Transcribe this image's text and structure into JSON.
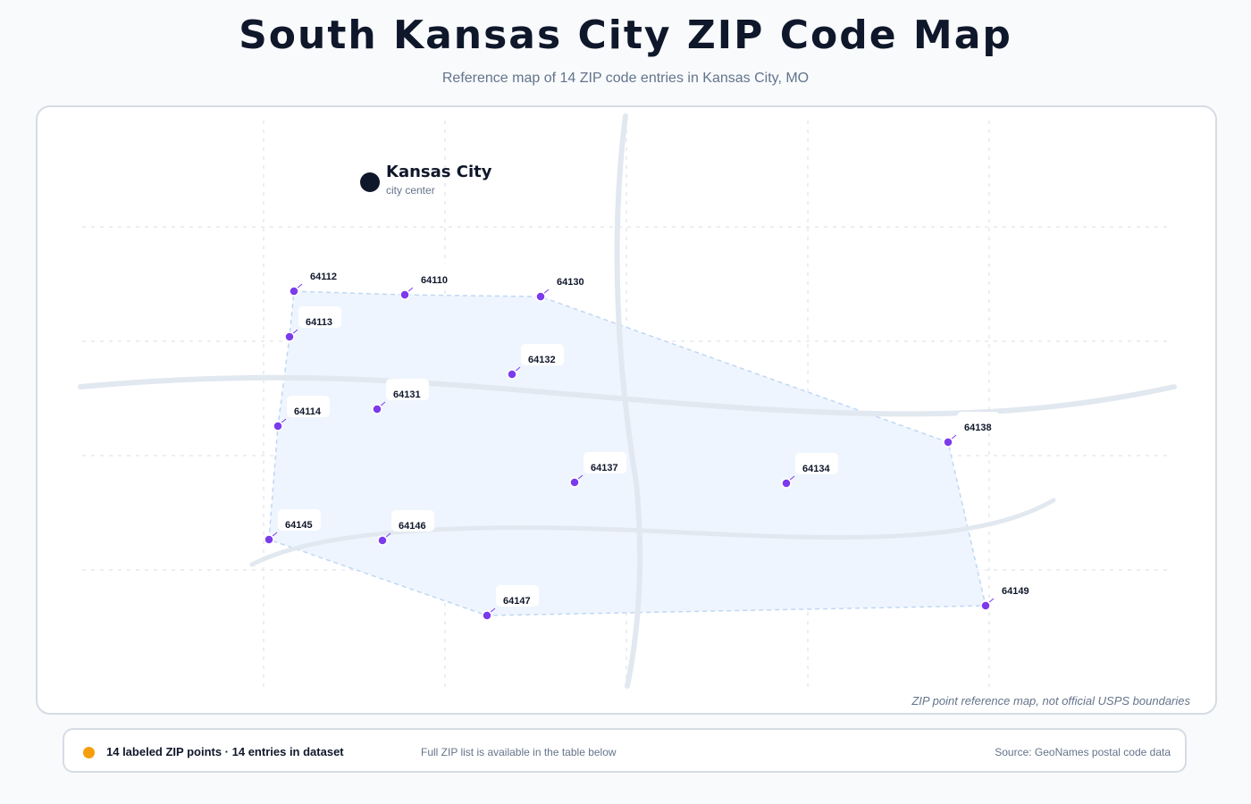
{
  "header": {
    "title": "South Kansas City ZIP Code Map",
    "subtitle": "Reference map of 14 ZIP code entries in Kansas City, MO"
  },
  "map": {
    "city": {
      "name": "Kansas City",
      "sublabel": "city center"
    },
    "disclaimer": "ZIP point reference map, not official USPS boundaries",
    "colors": {
      "point": "#7c3aed",
      "region_fill": "#eff5fe",
      "region_stroke": "#bfd8f4",
      "road": "#e2e8f0",
      "grid": "#e5e9ef",
      "city": "#0f172a"
    },
    "zip_codes": [
      "64112",
      "64110",
      "64130",
      "64113",
      "64132",
      "64131",
      "64114",
      "64138",
      "64137",
      "64134",
      "64145",
      "64146",
      "64147",
      "64149"
    ]
  },
  "footer": {
    "legend_label": "14 labeled ZIP points · 14 entries in dataset",
    "legend_color": "#f59e0b",
    "note": "Full ZIP list is available in the table below",
    "source": "Source: GeoNames postal code data"
  }
}
